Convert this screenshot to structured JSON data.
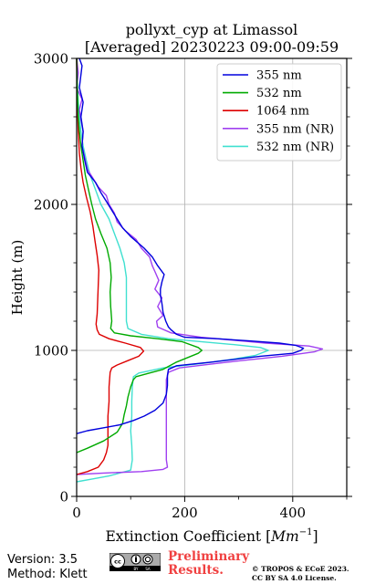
{
  "chart_data": {
    "type": "line",
    "title": "pollyxt_cyp at Limassol",
    "subtitle": "[Averaged] 20230223 09:00-09:59",
    "xlabel": "Extinction Coefficient [Mm^-1]",
    "xlabel_main": "Extinction Coefficient [",
    "xlabel_unit": "Mm",
    "xlabel_exp": "−1",
    "xlabel_close": "]",
    "ylabel": "Height (m)",
    "xlim": [
      0,
      500
    ],
    "ylim": [
      0,
      3000
    ],
    "xticks": [
      0,
      200,
      400
    ],
    "yticks": [
      0,
      1000,
      2000,
      3000
    ],
    "grid": true,
    "legend_position": "top-right",
    "series": [
      {
        "name": "355 nm",
        "color": "#0000dd",
        "points": [
          [
            0,
            430
          ],
          [
            20,
            450
          ],
          [
            50,
            470
          ],
          [
            80,
            490
          ],
          [
            105,
            520
          ],
          [
            125,
            550
          ],
          [
            145,
            590
          ],
          [
            160,
            640
          ],
          [
            166,
            700
          ],
          [
            168,
            760
          ],
          [
            168,
            830
          ],
          [
            170,
            870
          ],
          [
            185,
            895
          ],
          [
            250,
            920
          ],
          [
            340,
            960
          ],
          [
            400,
            980
          ],
          [
            415,
            1000
          ],
          [
            420,
            1015
          ],
          [
            405,
            1035
          ],
          [
            375,
            1050
          ],
          [
            320,
            1065
          ],
          [
            260,
            1080
          ],
          [
            200,
            1090
          ],
          [
            185,
            1110
          ],
          [
            175,
            1140
          ],
          [
            170,
            1160
          ],
          [
            165,
            1200
          ],
          [
            160,
            1260
          ],
          [
            158,
            1320
          ],
          [
            155,
            1380
          ],
          [
            155,
            1420
          ],
          [
            158,
            1470
          ],
          [
            162,
            1520
          ],
          [
            150,
            1580
          ],
          [
            140,
            1640
          ],
          [
            125,
            1700
          ],
          [
            100,
            1780
          ],
          [
            85,
            1840
          ],
          [
            75,
            1900
          ],
          [
            65,
            1960
          ],
          [
            55,
            2020
          ],
          [
            45,
            2080
          ],
          [
            35,
            2150
          ],
          [
            20,
            2220
          ],
          [
            15,
            2300
          ],
          [
            10,
            2400
          ],
          [
            12,
            2500
          ],
          [
            8,
            2600
          ],
          [
            12,
            2700
          ],
          [
            5,
            2800
          ],
          [
            10,
            2950
          ],
          [
            5,
            3000
          ]
        ]
      },
      {
        "name": "532 nm",
        "color": "#00aa00",
        "points": [
          [
            0,
            300
          ],
          [
            20,
            330
          ],
          [
            50,
            380
          ],
          [
            75,
            440
          ],
          [
            85,
            500
          ],
          [
            88,
            560
          ],
          [
            92,
            620
          ],
          [
            95,
            680
          ],
          [
            100,
            750
          ],
          [
            105,
            800
          ],
          [
            110,
            820
          ],
          [
            130,
            840
          ],
          [
            160,
            870
          ],
          [
            185,
            920
          ],
          [
            225,
            980
          ],
          [
            232,
            1000
          ],
          [
            225,
            1020
          ],
          [
            195,
            1060
          ],
          [
            150,
            1080
          ],
          [
            100,
            1100
          ],
          [
            70,
            1120
          ],
          [
            63,
            1150
          ],
          [
            65,
            1200
          ],
          [
            63,
            1300
          ],
          [
            62,
            1400
          ],
          [
            64,
            1500
          ],
          [
            62,
            1600
          ],
          [
            56,
            1700
          ],
          [
            45,
            1800
          ],
          [
            35,
            1900
          ],
          [
            28,
            2000
          ],
          [
            22,
            2100
          ],
          [
            16,
            2200
          ],
          [
            12,
            2300
          ],
          [
            8,
            2400
          ],
          [
            5,
            2500
          ],
          [
            3,
            2600
          ],
          [
            2,
            2700
          ],
          [
            1,
            2800
          ],
          [
            0,
            3000
          ]
        ]
      },
      {
        "name": "1064 nm",
        "color": "#dd0000",
        "points": [
          [
            0,
            150
          ],
          [
            20,
            170
          ],
          [
            40,
            200
          ],
          [
            50,
            250
          ],
          [
            55,
            300
          ],
          [
            58,
            350
          ],
          [
            58,
            450
          ],
          [
            58,
            550
          ],
          [
            60,
            650
          ],
          [
            60,
            750
          ],
          [
            62,
            850
          ],
          [
            65,
            880
          ],
          [
            75,
            900
          ],
          [
            95,
            930
          ],
          [
            115,
            960
          ],
          [
            124,
            995
          ],
          [
            118,
            1020
          ],
          [
            90,
            1050
          ],
          [
            60,
            1080
          ],
          [
            42,
            1110
          ],
          [
            38,
            1140
          ],
          [
            36,
            1180
          ],
          [
            38,
            1250
          ],
          [
            39,
            1350
          ],
          [
            40,
            1450
          ],
          [
            41,
            1550
          ],
          [
            38,
            1650
          ],
          [
            34,
            1750
          ],
          [
            30,
            1850
          ],
          [
            25,
            1950
          ],
          [
            18,
            2050
          ],
          [
            12,
            2150
          ],
          [
            8,
            2250
          ],
          [
            5,
            2350
          ],
          [
            3,
            2500
          ],
          [
            1,
            2700
          ],
          [
            0,
            3000
          ]
        ]
      },
      {
        "name": "355 nm (NR)",
        "color": "#a040f0",
        "points": [
          [
            0,
            150
          ],
          [
            50,
            160
          ],
          [
            120,
            170
          ],
          [
            160,
            185
          ],
          [
            168,
            200
          ],
          [
            166,
            250
          ],
          [
            166,
            300
          ],
          [
            166,
            400
          ],
          [
            166,
            500
          ],
          [
            166,
            600
          ],
          [
            166,
            700
          ],
          [
            166,
            800
          ],
          [
            170,
            850
          ],
          [
            190,
            880
          ],
          [
            280,
            920
          ],
          [
            380,
            960
          ],
          [
            440,
            990
          ],
          [
            455,
            1010
          ],
          [
            430,
            1030
          ],
          [
            350,
            1050
          ],
          [
            290,
            1070
          ],
          [
            230,
            1090
          ],
          [
            175,
            1120
          ],
          [
            150,
            1160
          ],
          [
            148,
            1200
          ],
          [
            160,
            1240
          ],
          [
            150,
            1300
          ],
          [
            158,
            1360
          ],
          [
            145,
            1420
          ],
          [
            152,
            1480
          ],
          [
            145,
            1540
          ],
          [
            140,
            1580
          ],
          [
            135,
            1640
          ],
          [
            120,
            1700
          ],
          [
            110,
            1760
          ],
          [
            90,
            1820
          ],
          [
            75,
            1880
          ],
          [
            70,
            1940
          ],
          [
            60,
            2000
          ],
          [
            55,
            2060
          ],
          [
            40,
            2120
          ],
          [
            30,
            2180
          ],
          [
            20,
            2240
          ],
          [
            15,
            2320
          ],
          [
            10,
            2400
          ],
          [
            12,
            2500
          ],
          [
            8,
            2580
          ],
          [
            5,
            2650
          ],
          [
            10,
            2720
          ],
          [
            0,
            2800
          ],
          [
            3,
            2900
          ],
          [
            0,
            3000
          ]
        ]
      },
      {
        "name": "532 nm (NR)",
        "color": "#40e0d0",
        "points": [
          [
            0,
            100
          ],
          [
            30,
            120
          ],
          [
            60,
            140
          ],
          [
            100,
            180
          ],
          [
            103,
            250
          ],
          [
            102,
            350
          ],
          [
            100,
            450
          ],
          [
            102,
            550
          ],
          [
            102,
            650
          ],
          [
            103,
            750
          ],
          [
            105,
            820
          ],
          [
            115,
            845
          ],
          [
            160,
            880
          ],
          [
            230,
            910
          ],
          [
            290,
            940
          ],
          [
            330,
            965
          ],
          [
            355,
            1000
          ],
          [
            340,
            1020
          ],
          [
            290,
            1040
          ],
          [
            230,
            1060
          ],
          [
            170,
            1080
          ],
          [
            120,
            1110
          ],
          [
            95,
            1150
          ],
          [
            92,
            1200
          ],
          [
            92,
            1300
          ],
          [
            92,
            1400
          ],
          [
            92,
            1500
          ],
          [
            88,
            1600
          ],
          [
            80,
            1700
          ],
          [
            70,
            1800
          ],
          [
            60,
            1900
          ],
          [
            45,
            2000
          ],
          [
            35,
            2100
          ],
          [
            25,
            2200
          ],
          [
            18,
            2300
          ],
          [
            12,
            2400
          ],
          [
            8,
            2500
          ],
          [
            5,
            2600
          ],
          [
            3,
            2700
          ],
          [
            1,
            2850
          ],
          [
            0,
            3000
          ]
        ]
      }
    ]
  },
  "footer": {
    "version": "Version: 3.5",
    "method": "Method: Klett",
    "preliminary_line1": "Preliminary",
    "preliminary_line2": "Results.",
    "copyright_line1": "© TROPOS & ECoE 2023.",
    "copyright_line2": "CC BY SA 4.0 License."
  }
}
